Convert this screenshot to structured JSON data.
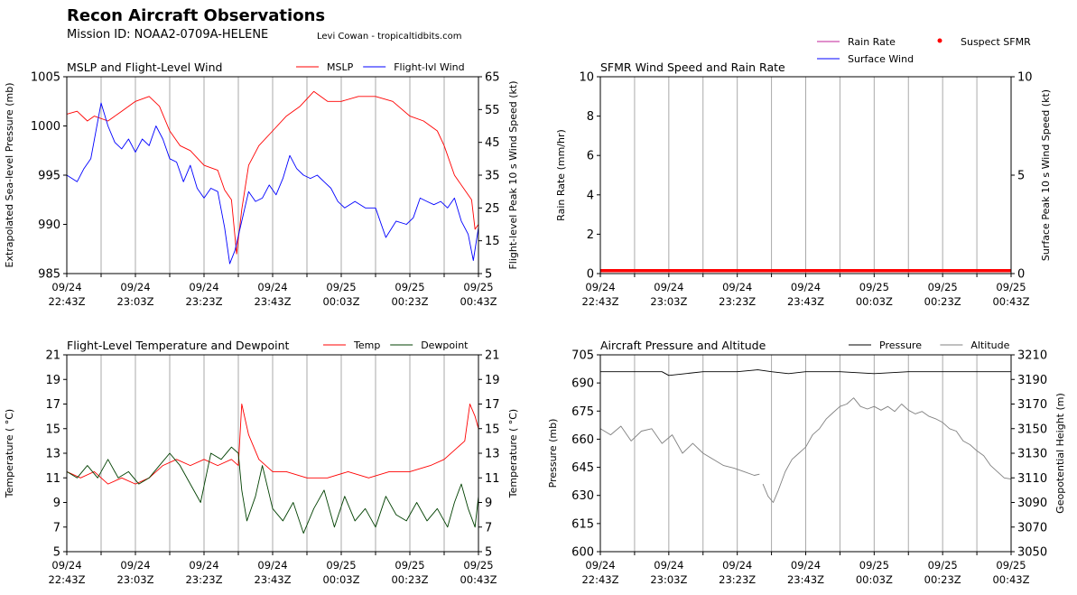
{
  "header": {
    "title": "Recon Aircraft Observations",
    "mission": "Mission ID: NOAA2-0709A-HELENE",
    "credit": "Levi Cowan - tropicaltidbits.com"
  },
  "x_ticks": [
    "09/24|22:43Z",
    "09/24|23:03Z",
    "09/24|23:23Z",
    "09/24|23:43Z",
    "09/25|00:03Z",
    "09/25|00:23Z",
    "09/25|00:43Z"
  ],
  "chart_data": [
    {
      "id": "p1",
      "type": "line",
      "title": "MSLP and Flight-Level Wind",
      "ylabel": "Extrapolated Sea-level Pressure (mb)",
      "ylabel_right": "Flight-level Peak 10 s Wind Speed (kt)",
      "ylim": [
        985,
        1005
      ],
      "ylim_right": [
        5,
        65
      ],
      "yticks": [
        985,
        990,
        995,
        1000,
        1005
      ],
      "yticks_right": [
        5,
        15,
        25,
        35,
        45,
        55,
        65
      ],
      "legend": [
        {
          "name": "MSLP",
          "color": "#ff0000"
        },
        {
          "name": "Flight-lvl Wind",
          "color": "#0000ff"
        }
      ],
      "x_minutes": [
        0,
        120
      ],
      "series": [
        {
          "name": "MSLP",
          "axis": "left",
          "color": "#ff0000",
          "x": [
            0,
            3,
            6,
            8,
            12,
            16,
            20,
            24,
            27,
            30,
            33,
            36,
            40,
            44,
            46,
            48,
            49.5,
            51,
            53,
            56,
            60,
            64,
            68,
            72,
            76,
            80,
            85,
            90,
            95,
            100,
            104,
            108,
            110,
            113,
            116,
            118,
            119,
            120
          ],
          "y": [
            1001.2,
            1001.5,
            1000.5,
            1001.0,
            1000.5,
            1001.5,
            1002.5,
            1003.0,
            1002.0,
            999.5,
            998.0,
            997.5,
            996.0,
            995.5,
            993.5,
            992.5,
            987.0,
            991.5,
            996.0,
            998.0,
            999.5,
            1001.0,
            1002.0,
            1003.5,
            1002.5,
            1002.5,
            1003.0,
            1003.0,
            1002.5,
            1001.0,
            1000.5,
            999.5,
            998.0,
            995.0,
            993.5,
            992.5,
            989.5,
            990.0
          ]
        },
        {
          "name": "Flight-lvl Wind",
          "axis": "right",
          "color": "#0000ff",
          "x": [
            0,
            3,
            5,
            7,
            10,
            12,
            14,
            16,
            18,
            20,
            22,
            24,
            26,
            28,
            30,
            32,
            34,
            36,
            38,
            40,
            42,
            44,
            46,
            47.5,
            49,
            51,
            53,
            55,
            57,
            59,
            61,
            63,
            65,
            67,
            69,
            71,
            73,
            75,
            77,
            79,
            81,
            84,
            87,
            90,
            93,
            96,
            99,
            101,
            103,
            105,
            107,
            109,
            111,
            113,
            115,
            117,
            118.5,
            120
          ],
          "y": [
            35,
            33,
            37,
            40,
            57,
            50,
            45,
            43,
            46,
            42,
            46,
            44,
            50,
            46,
            40,
            39,
            33,
            38,
            31,
            28,
            31,
            30,
            19,
            8,
            12,
            21,
            30,
            27,
            28,
            32,
            29,
            34,
            41,
            37,
            35,
            34,
            35,
            33,
            31,
            27,
            25,
            27,
            25,
            25,
            16,
            21,
            20,
            22,
            28,
            27,
            26,
            27,
            25,
            28,
            21,
            17,
            9,
            19
          ]
        }
      ]
    },
    {
      "id": "p2",
      "type": "line",
      "title": "SFMR Wind Speed and Rain Rate",
      "ylabel": "Rain Rate (mm/hr)",
      "ylabel_right": "Surface Peak 10 s Wind Speed (kt)",
      "ylim": [
        0,
        10
      ],
      "ylim_right": [
        0,
        10
      ],
      "yticks": [
        0,
        2,
        4,
        6,
        8,
        10
      ],
      "yticks_right": [
        0,
        5,
        10
      ],
      "legend": [
        {
          "name": "Rain Rate",
          "color": "#c0219a"
        },
        {
          "name": "Suspect SFMR",
          "color": "#ff0000"
        },
        {
          "name": "Surface Wind",
          "color": "#0000ff"
        }
      ],
      "x_minutes": [
        0,
        120
      ],
      "series": [
        {
          "name": "Suspect SFMR",
          "axis": "right",
          "color": "#ff0000",
          "x": [
            0,
            120
          ],
          "y": [
            0.1,
            0.1
          ]
        }
      ]
    },
    {
      "id": "p3",
      "type": "line",
      "title": "Flight-Level Temperature and Dewpoint",
      "ylabel": "Temperature ( °C)",
      "ylabel_right": "Temperature ( °C)",
      "ylim": [
        5,
        21
      ],
      "ylim_right": [
        5,
        21
      ],
      "yticks": [
        5,
        7,
        9,
        11,
        13,
        15,
        17,
        19,
        21
      ],
      "yticks_right": [
        5,
        7,
        9,
        11,
        13,
        15,
        17,
        19,
        21
      ],
      "legend": [
        {
          "name": "Temp",
          "color": "#ff0000"
        },
        {
          "name": "Dewpoint",
          "color": "#004000"
        }
      ],
      "x_minutes": [
        0,
        120
      ],
      "series": [
        {
          "name": "Temp",
          "axis": "left",
          "color": "#ff0000",
          "x": [
            0,
            4,
            8,
            12,
            16,
            20,
            24,
            28,
            32,
            36,
            40,
            44,
            48,
            50,
            51,
            53,
            56,
            60,
            64,
            70,
            76,
            82,
            88,
            94,
            100,
            106,
            110,
            114,
            116,
            117.5,
            119,
            120
          ],
          "y": [
            11.5,
            11.0,
            11.5,
            10.5,
            11.0,
            10.5,
            11.0,
            12.0,
            12.5,
            12.0,
            12.5,
            12.0,
            12.5,
            12.0,
            17.0,
            14.5,
            12.5,
            11.5,
            11.5,
            11.0,
            11.0,
            11.5,
            11.0,
            11.5,
            11.5,
            12.0,
            12.5,
            13.5,
            14.0,
            17.0,
            16.0,
            15.0
          ]
        },
        {
          "name": "Dewpoint",
          "axis": "left",
          "color": "#004000",
          "x": [
            0,
            3,
            6,
            9,
            12,
            15,
            18,
            21,
            24,
            27,
            30,
            33,
            36,
            39,
            42,
            45,
            48,
            50,
            51,
            52.5,
            55,
            57,
            60,
            63,
            66,
            69,
            72,
            75,
            78,
            81,
            84,
            87,
            90,
            93,
            96,
            99,
            102,
            105,
            108,
            111,
            113,
            115,
            117,
            119,
            120
          ],
          "y": [
            11.5,
            11.0,
            12.0,
            11.0,
            12.5,
            11.0,
            11.5,
            10.5,
            11.0,
            12.0,
            13.0,
            12.0,
            10.5,
            9.0,
            13.0,
            12.5,
            13.5,
            13.0,
            10.0,
            7.5,
            9.5,
            12.0,
            8.5,
            7.5,
            9.0,
            6.5,
            8.5,
            10.0,
            7.0,
            9.5,
            7.5,
            8.5,
            7.0,
            9.5,
            8.0,
            7.5,
            9.0,
            7.5,
            8.5,
            7.0,
            9.0,
            10.5,
            8.5,
            7.0,
            9.5
          ]
        }
      ]
    },
    {
      "id": "p4",
      "type": "line",
      "title": "Aircraft Pressure and Altitude",
      "ylabel": "Pressure (mb)",
      "ylabel_right": "Geopotential Height (m)",
      "ylim": [
        600,
        705
      ],
      "ylim_right": [
        3050,
        3210
      ],
      "yticks": [
        600,
        615,
        630,
        645,
        660,
        675,
        690,
        705
      ],
      "yticks_right": [
        3050,
        3070,
        3090,
        3110,
        3130,
        3150,
        3170,
        3190,
        3210
      ],
      "legend": [
        {
          "name": "Pressure",
          "color": "#000000"
        },
        {
          "name": "Altitude",
          "color": "#808080"
        }
      ],
      "x_minutes": [
        0,
        120
      ],
      "series": [
        {
          "name": "Pressure",
          "axis": "left",
          "color": "#000000",
          "x": [
            0,
            10,
            18,
            20,
            30,
            40,
            46,
            50,
            55,
            60,
            70,
            80,
            90,
            100,
            110,
            120
          ],
          "y": [
            696,
            696,
            696,
            694,
            696,
            696,
            697,
            696,
            695,
            696,
            696,
            695,
            696,
            696,
            696,
            696
          ]
        },
        {
          "name": "Altitude",
          "axis": "right",
          "color": "#808080",
          "x": [
            0,
            3,
            6,
            9,
            12,
            15,
            18,
            21,
            24,
            27,
            30,
            33,
            36,
            39,
            42,
            45,
            46.5
          ],
          "y": [
            3150,
            3145,
            3152,
            3140,
            3148,
            3150,
            3138,
            3145,
            3130,
            3138,
            3130,
            3125,
            3120,
            3118,
            3115,
            3112,
            3113
          ]
        },
        {
          "name": "Altitude",
          "axis": "right",
          "color": "#808080",
          "x": [
            47.5,
            49,
            50.5,
            52,
            54,
            56,
            58,
            60,
            62,
            64,
            66,
            68,
            70,
            72,
            74,
            76,
            78,
            80,
            82,
            84,
            86,
            88,
            90,
            92,
            94,
            96,
            98,
            100,
            102,
            104,
            106,
            108,
            110,
            112,
            114,
            116,
            118,
            120
          ],
          "y": [
            3105,
            3095,
            3090,
            3100,
            3115,
            3125,
            3130,
            3135,
            3145,
            3150,
            3158,
            3163,
            3168,
            3170,
            3175,
            3168,
            3166,
            3168,
            3165,
            3168,
            3164,
            3170,
            3165,
            3162,
            3164,
            3160,
            3158,
            3155,
            3150,
            3148,
            3140,
            3137,
            3132,
            3128,
            3120,
            3115,
            3110,
            3109
          ]
        }
      ]
    }
  ]
}
